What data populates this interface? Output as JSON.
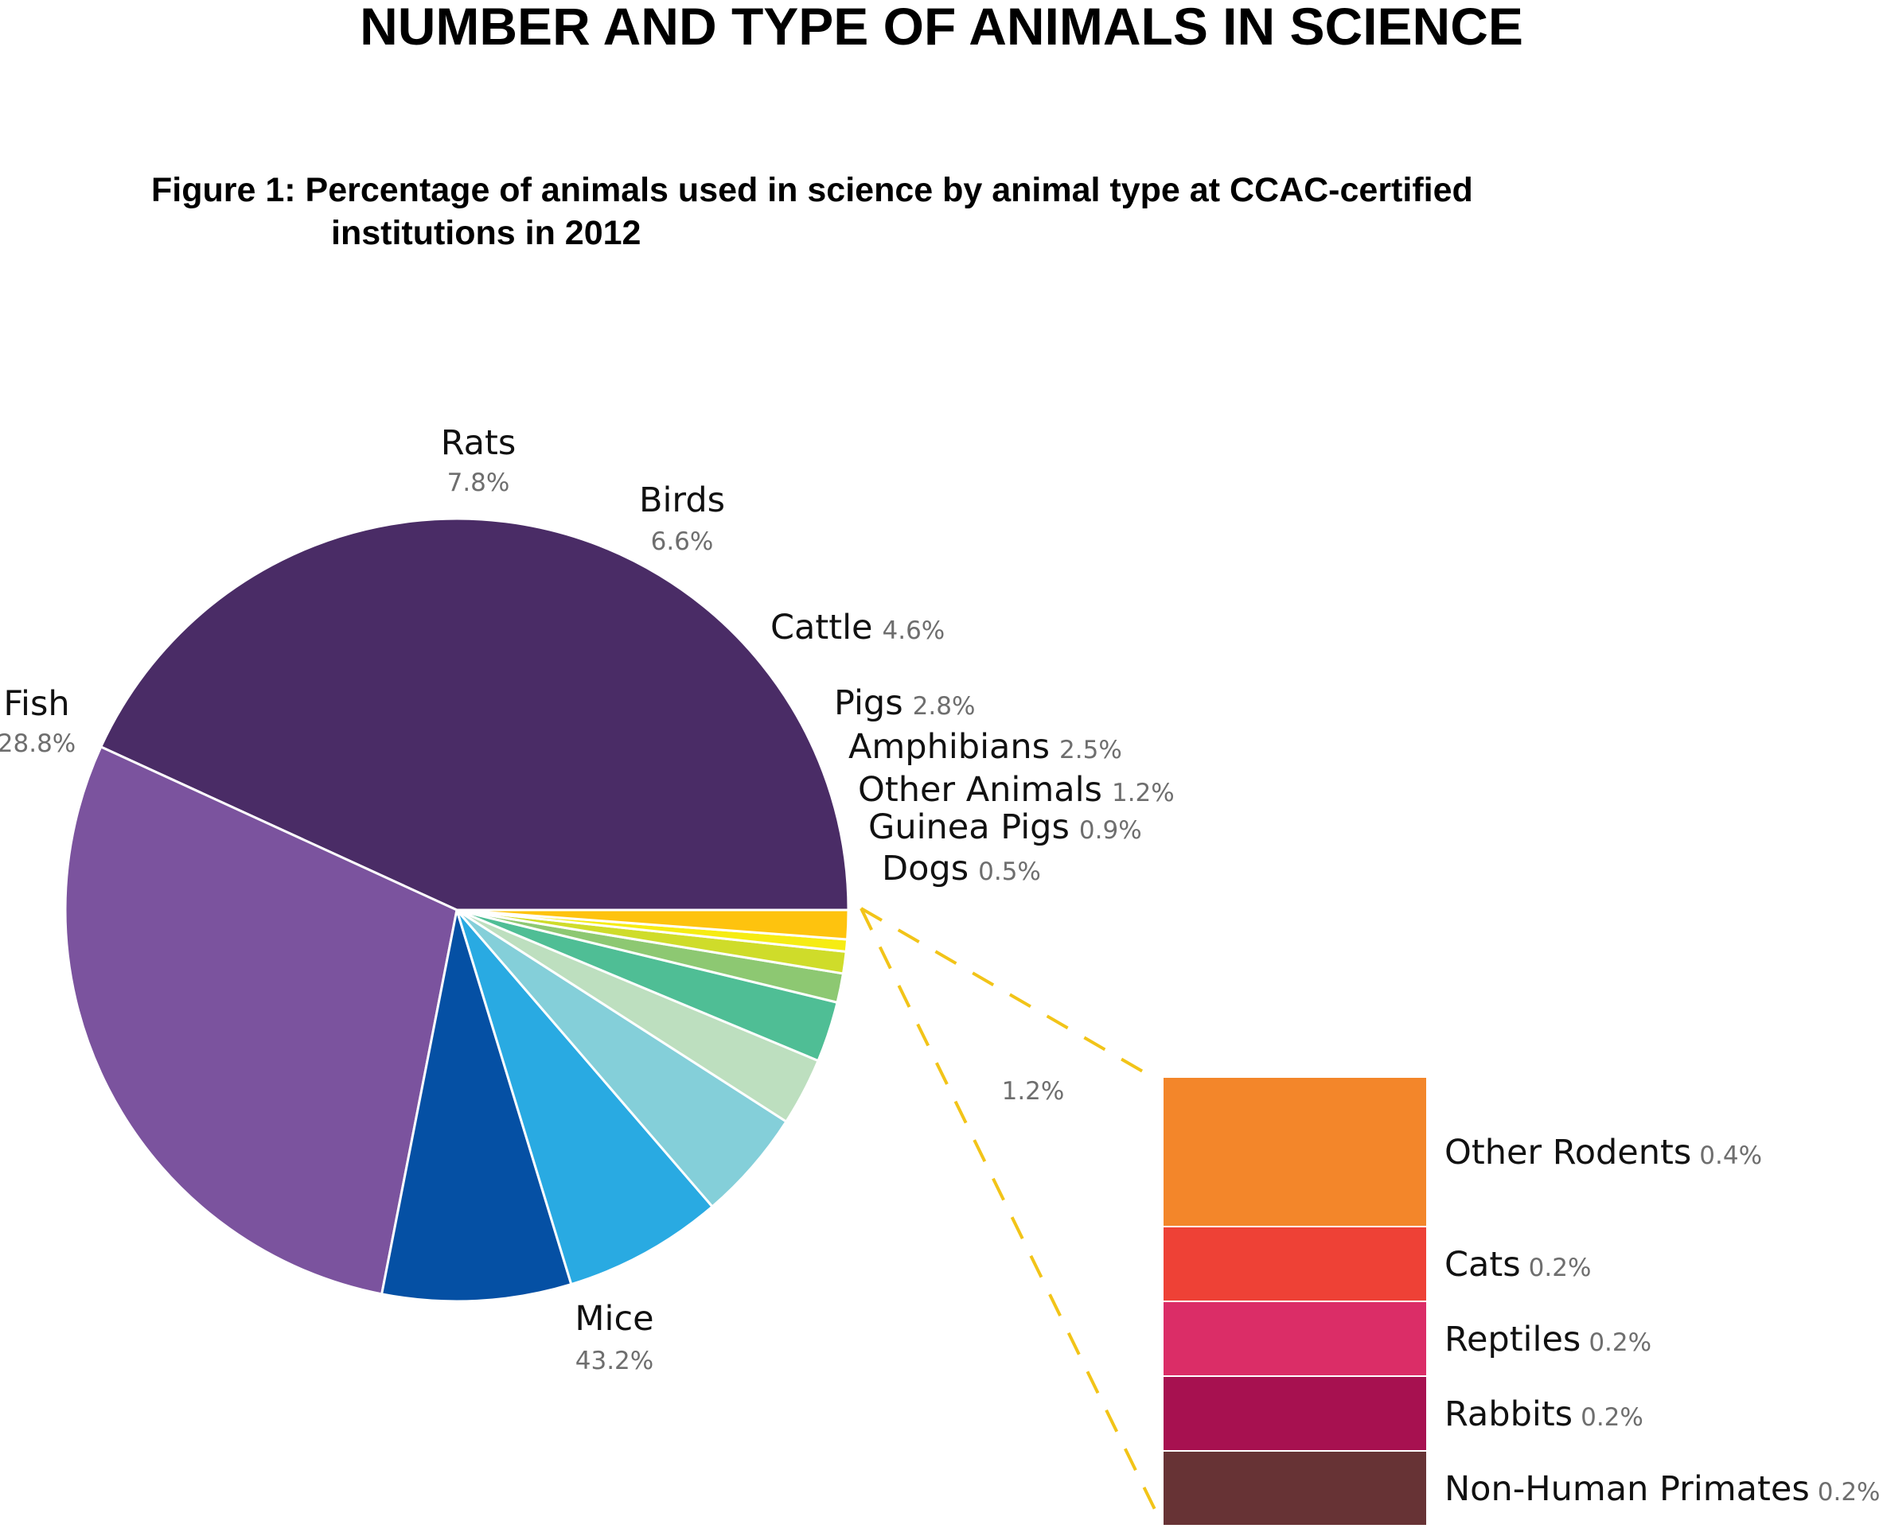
{
  "title": "NUMBER AND TYPE OF ANIMALS IN SCIENCE",
  "caption": {
    "line1": "Figure 1: Percentage of animals used in science by animal type at CCAC-certified",
    "line2": "institutions in 2012"
  },
  "chart_data": [
    {
      "type": "pie",
      "slices": [
        {
          "label": "Mice",
          "value": 43.2,
          "pct_text": "43.2%",
          "color": "#4a2c66"
        },
        {
          "label": "Fish",
          "value": 28.8,
          "pct_text": "28.8%",
          "color": "#7b539e"
        },
        {
          "label": "Rats",
          "value": 7.8,
          "pct_text": "7.8%",
          "color": "#0550a4"
        },
        {
          "label": "Birds",
          "value": 6.6,
          "pct_text": "6.6%",
          "color": "#29aae2"
        },
        {
          "label": "Cattle",
          "value": 4.6,
          "pct_text": "4.6%",
          "color": "#84cfd9"
        },
        {
          "label": "Pigs",
          "value": 2.8,
          "pct_text": "2.8%",
          "color": "#bddfbf"
        },
        {
          "label": "Amphibians",
          "value": 2.5,
          "pct_text": "2.5%",
          "color": "#4fbe95"
        },
        {
          "label": "Other Animals",
          "value": 1.2,
          "pct_text": "1.2%",
          "color": "#8dc872"
        },
        {
          "label": "Guinea Pigs",
          "value": 0.9,
          "pct_text": "0.9%",
          "color": "#cfdc2a"
        },
        {
          "label": "Dogs",
          "value": 0.5,
          "pct_text": "0.5%",
          "color": "#f6ec13"
        },
        {
          "label": "",
          "value": 1.2,
          "pct_text": "1.2%",
          "color": "#fec30e"
        }
      ]
    },
    {
      "type": "bar",
      "stacked": true,
      "total_text": "1.2%",
      "segments": [
        {
          "label": "Other Rodents",
          "value": 0.4,
          "pct_text": "0.4%",
          "color": "#f3862a"
        },
        {
          "label": "Cats",
          "value": 0.2,
          "pct_text": "0.2%",
          "color": "#ee4136"
        },
        {
          "label": "Reptiles",
          "value": 0.2,
          "pct_text": "0.2%",
          "color": "#db2d67"
        },
        {
          "label": "Rabbits",
          "value": 0.2,
          "pct_text": "0.2%",
          "color": "#a71150"
        },
        {
          "label": "Non-Human Primates",
          "value": 0.2,
          "pct_text": "0.2%",
          "color": "#673335"
        }
      ]
    }
  ]
}
